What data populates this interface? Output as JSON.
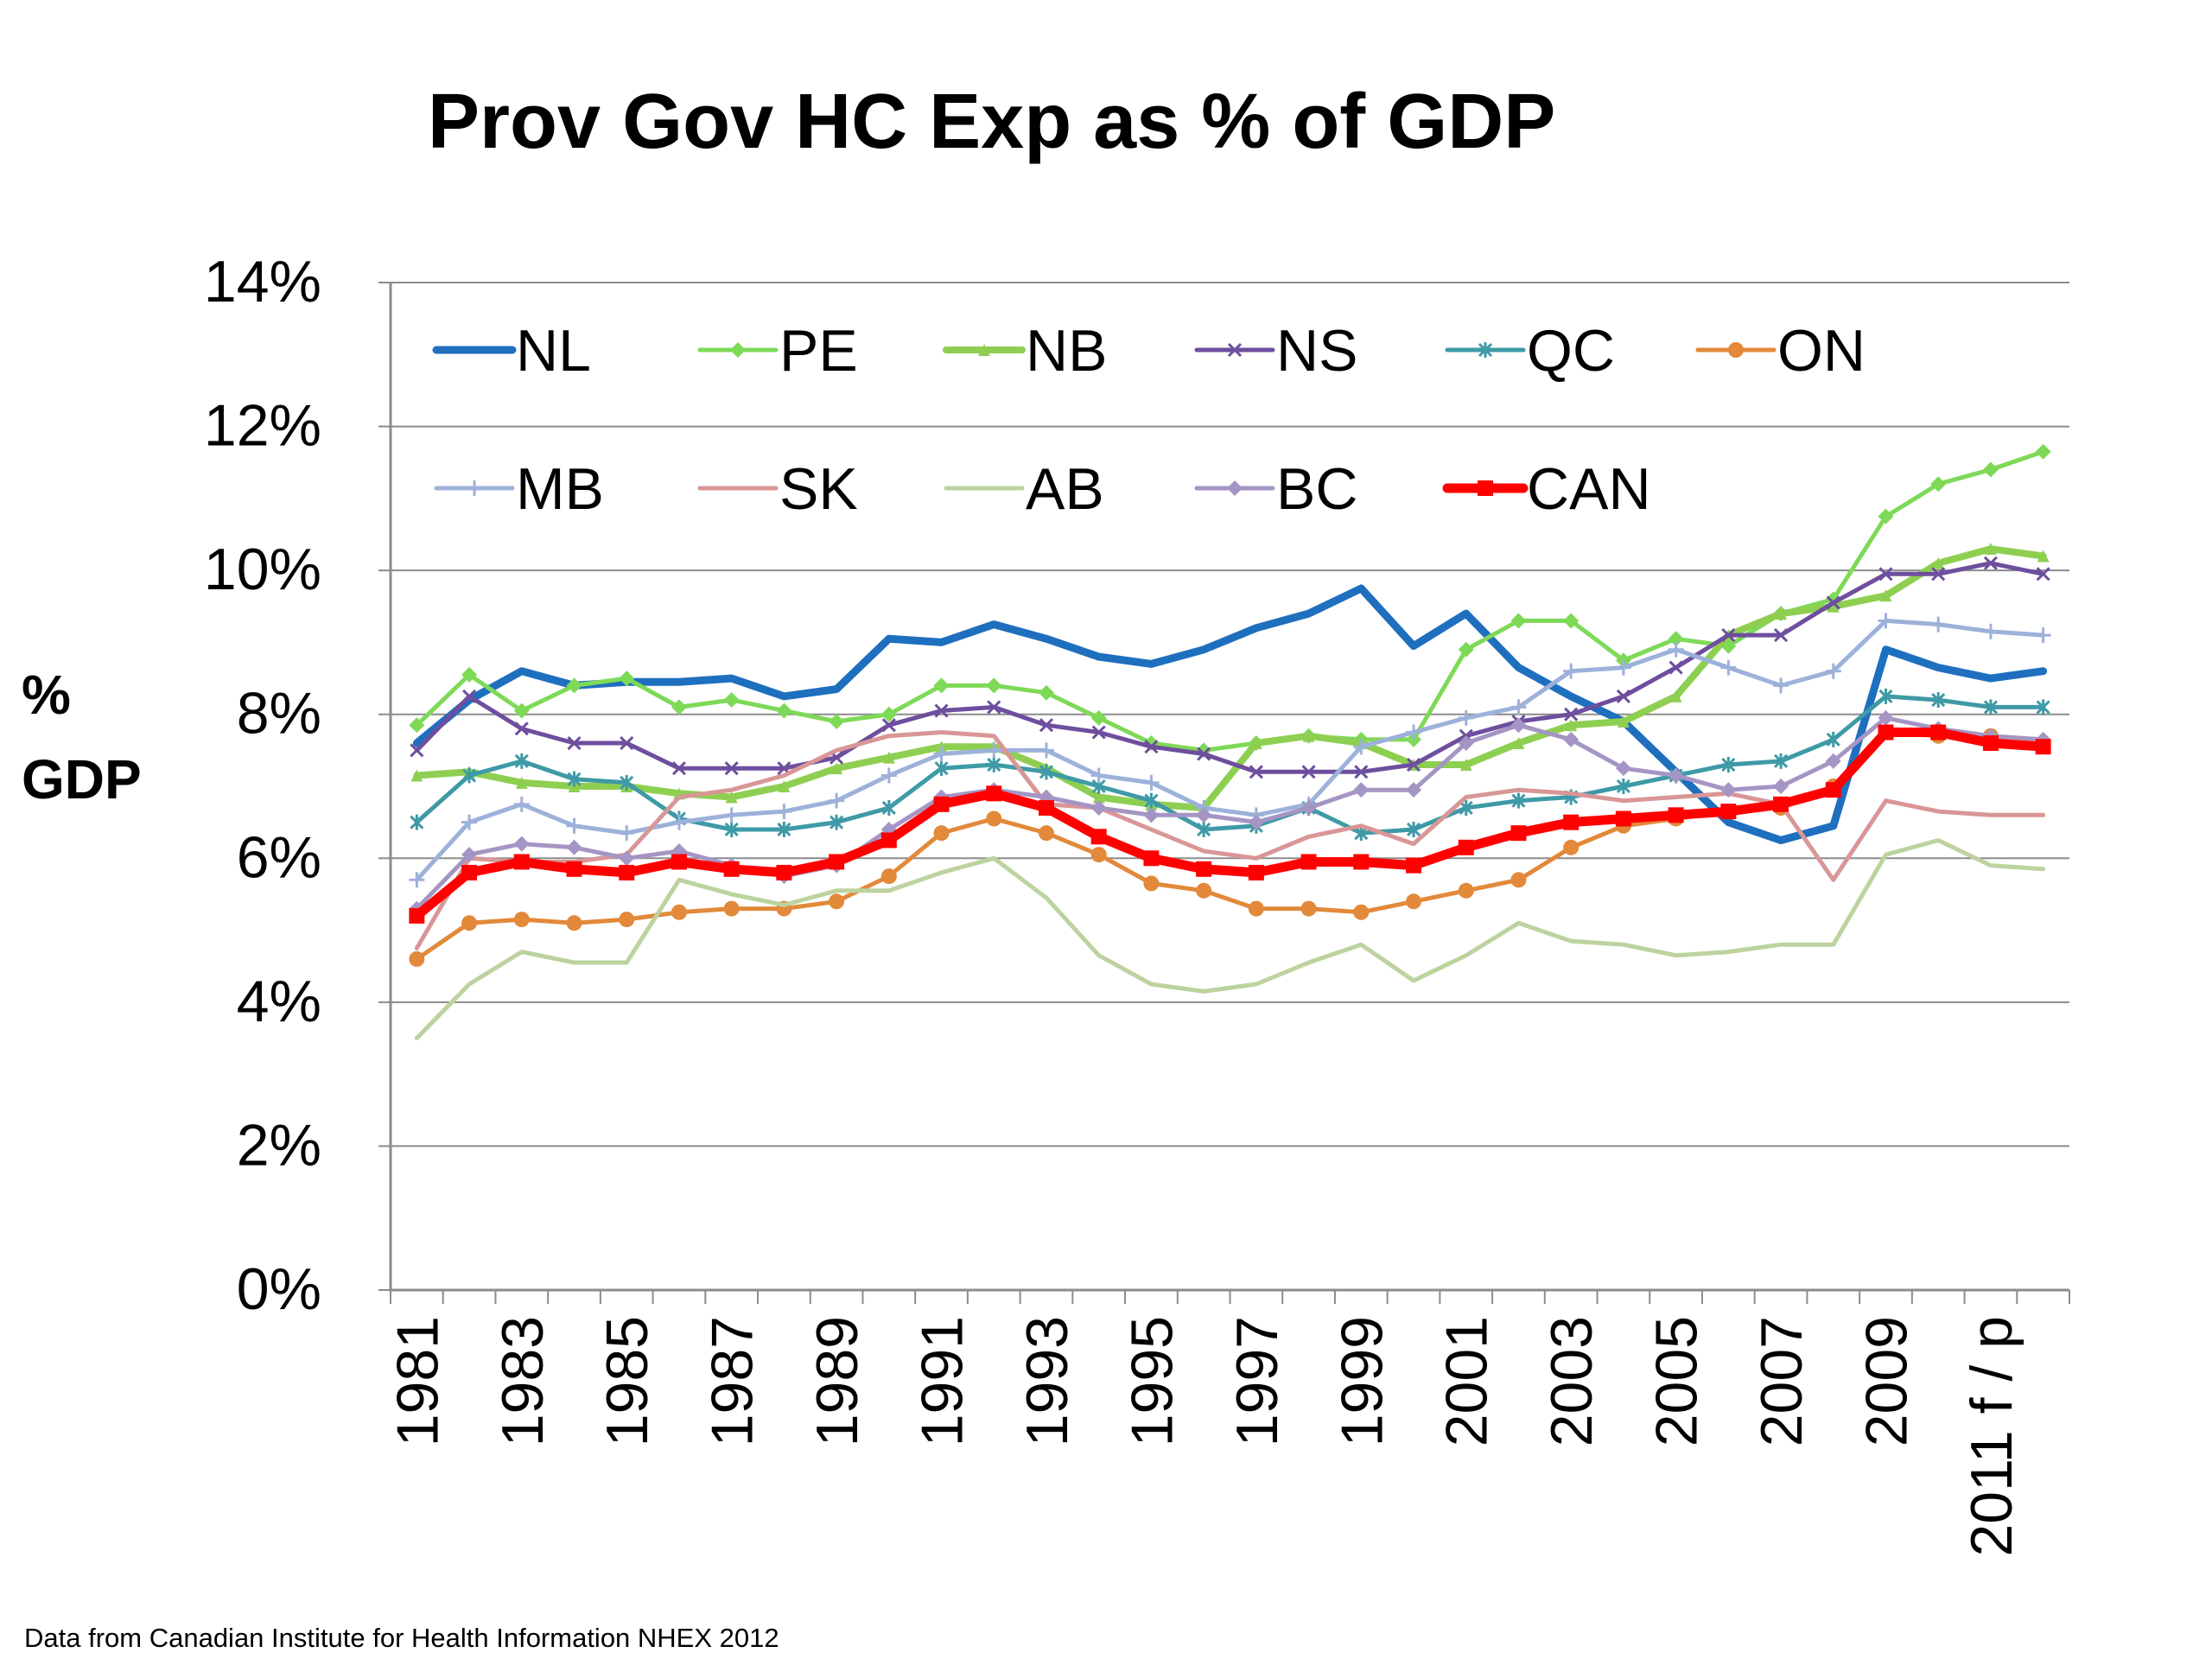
{
  "chart_data": {
    "type": "line",
    "title": "Prov Gov HC Exp as % of GDP",
    "ylabel_lines": [
      "%",
      "GDP"
    ],
    "source": "Data from Canadian Institute for Health Information NHEX 2012",
    "x": [
      1981,
      1982,
      1983,
      1984,
      1985,
      1986,
      1987,
      1988,
      1989,
      1990,
      1991,
      1992,
      1993,
      1994,
      1995,
      1996,
      1997,
      1998,
      1999,
      2000,
      2001,
      2002,
      2003,
      2004,
      2005,
      2006,
      2007,
      2008,
      2009,
      2010,
      2011,
      2012
    ],
    "x_tick_labels": [
      "1981",
      "1983",
      "1985",
      "1987",
      "1989",
      "1991",
      "1993",
      "1995",
      "1997",
      "1999",
      "2001",
      "2003",
      "2005",
      "2007",
      "2009",
      "2011 f / p"
    ],
    "ylim": [
      0,
      14
    ],
    "y_tick_labels": [
      "0%",
      "2%",
      "4%",
      "6%",
      "8%",
      "10%",
      "12%",
      "14%"
    ],
    "grid": true,
    "legend_position": "top, inside plot area, two rows",
    "series": [
      {
        "name": "NL",
        "color": "#1F6FBF",
        "marker": "none",
        "width": 9,
        "values": [
          7.6,
          8.2,
          8.6,
          8.4,
          8.45,
          8.45,
          8.5,
          8.25,
          8.35,
          9.05,
          9.0,
          9.25,
          9.05,
          8.8,
          8.7,
          8.9,
          9.2,
          9.4,
          9.75,
          8.95,
          9.4,
          8.65,
          8.25,
          7.9,
          7.2,
          6.5,
          6.25,
          6.45,
          8.9,
          8.65,
          8.5,
          8.6
        ]
      },
      {
        "name": "PE",
        "color": "#7ED957",
        "marker": "diamond",
        "width": 5,
        "values": [
          7.85,
          8.55,
          8.05,
          8.4,
          8.5,
          8.1,
          8.2,
          8.05,
          7.9,
          8.0,
          8.4,
          8.4,
          8.3,
          7.95,
          7.6,
          7.5,
          7.6,
          7.7,
          7.65,
          7.65,
          8.9,
          9.3,
          9.3,
          8.75,
          9.05,
          8.95,
          9.4,
          9.6,
          10.75,
          11.2,
          11.4,
          11.65
        ]
      },
      {
        "name": "NB",
        "color": "#8ECF52",
        "marker": "triangle",
        "width": 8,
        "values": [
          7.15,
          7.2,
          7.05,
          7.0,
          7.0,
          6.9,
          6.85,
          7.0,
          7.25,
          7.4,
          7.55,
          7.55,
          7.25,
          6.85,
          6.75,
          6.7,
          7.6,
          7.7,
          7.6,
          7.3,
          7.3,
          7.6,
          7.85,
          7.9,
          8.25,
          9.1,
          9.4,
          9.5,
          9.65,
          10.1,
          10.3,
          10.2
        ]
      },
      {
        "name": "NS",
        "color": "#6E4E9E",
        "marker": "x",
        "width": 5,
        "values": [
          7.5,
          8.25,
          7.8,
          7.6,
          7.6,
          7.25,
          7.25,
          7.25,
          7.4,
          7.85,
          8.05,
          8.1,
          7.85,
          7.75,
          7.55,
          7.45,
          7.2,
          7.2,
          7.2,
          7.3,
          7.7,
          7.9,
          8.0,
          8.25,
          8.65,
          9.1,
          9.1,
          9.55,
          9.95,
          9.95,
          10.1,
          9.95
        ]
      },
      {
        "name": "QC",
        "color": "#3E9AA6",
        "marker": "asterisk",
        "width": 5,
        "values": [
          6.5,
          7.15,
          7.35,
          7.1,
          7.05,
          6.55,
          6.4,
          6.4,
          6.5,
          6.7,
          7.25,
          7.3,
          7.2,
          7.0,
          6.8,
          6.4,
          6.45,
          6.7,
          6.35,
          6.4,
          6.7,
          6.8,
          6.85,
          7.0,
          7.15,
          7.3,
          7.35,
          7.65,
          8.25,
          8.2,
          8.1,
          8.1
        ]
      },
      {
        "name": "ON",
        "color": "#E2893A",
        "marker": "circle",
        "width": 5,
        "values": [
          4.6,
          5.1,
          5.15,
          5.1,
          5.15,
          5.25,
          5.3,
          5.3,
          5.4,
          5.75,
          6.35,
          6.55,
          6.35,
          6.05,
          5.65,
          5.55,
          5.3,
          5.3,
          5.25,
          5.4,
          5.55,
          5.7,
          6.15,
          6.45,
          6.55,
          6.65,
          6.7,
          7.0,
          7.75,
          7.7,
          7.7,
          7.6
        ]
      },
      {
        "name": "MB",
        "color": "#9DB1DA",
        "marker": "plus",
        "width": 5,
        "values": [
          5.7,
          6.5,
          6.75,
          6.45,
          6.35,
          6.5,
          6.6,
          6.65,
          6.8,
          7.15,
          7.45,
          7.5,
          7.5,
          7.15,
          7.05,
          6.7,
          6.6,
          6.75,
          7.55,
          7.75,
          7.95,
          8.1,
          8.6,
          8.65,
          8.9,
          8.65,
          8.4,
          8.6,
          9.3,
          9.25,
          9.15,
          9.1
        ]
      },
      {
        "name": "SK",
        "color": "#D99696",
        "marker": "none",
        "width": 5,
        "values": [
          4.75,
          6.0,
          5.95,
          5.95,
          6.05,
          6.85,
          6.95,
          7.15,
          7.5,
          7.7,
          7.75,
          7.7,
          6.75,
          6.7,
          6.4,
          6.1,
          6.0,
          6.3,
          6.45,
          6.2,
          6.85,
          6.95,
          6.9,
          6.8,
          6.85,
          6.9,
          6.75,
          5.7,
          6.8,
          6.65,
          6.6,
          6.6
        ]
      },
      {
        "name": "AB",
        "color": "#BCD39F",
        "marker": "none",
        "width": 5,
        "values": [
          3.5,
          4.25,
          4.7,
          4.55,
          4.55,
          5.7,
          5.5,
          5.35,
          5.55,
          5.55,
          5.8,
          6.0,
          5.45,
          4.65,
          4.25,
          4.15,
          4.25,
          4.55,
          4.8,
          4.3,
          4.65,
          5.1,
          4.85,
          4.8,
          4.65,
          4.7,
          4.8,
          4.8,
          6.05,
          6.25,
          5.9,
          5.85
        ]
      },
      {
        "name": "BC",
        "color": "#A595C4",
        "marker": "diamond",
        "width": 5,
        "values": [
          5.3,
          6.05,
          6.2,
          6.15,
          6.0,
          6.1,
          5.9,
          5.75,
          5.9,
          6.4,
          6.85,
          6.95,
          6.85,
          6.7,
          6.6,
          6.6,
          6.5,
          6.7,
          6.95,
          6.95,
          7.6,
          7.85,
          7.65,
          7.25,
          7.15,
          6.95,
          7.0,
          7.35,
          7.95,
          7.8,
          7.7,
          7.65
        ]
      },
      {
        "name": "CAN",
        "color": "#FF0000",
        "marker": "square",
        "width": 11,
        "values": [
          5.2,
          5.8,
          5.95,
          5.85,
          5.8,
          5.95,
          5.85,
          5.8,
          5.95,
          6.25,
          6.75,
          6.9,
          6.7,
          6.3,
          6.0,
          5.85,
          5.8,
          5.95,
          5.95,
          5.9,
          6.15,
          6.35,
          6.5,
          6.55,
          6.6,
          6.65,
          6.75,
          6.95,
          7.75,
          7.75,
          7.6,
          7.55
        ]
      }
    ]
  }
}
